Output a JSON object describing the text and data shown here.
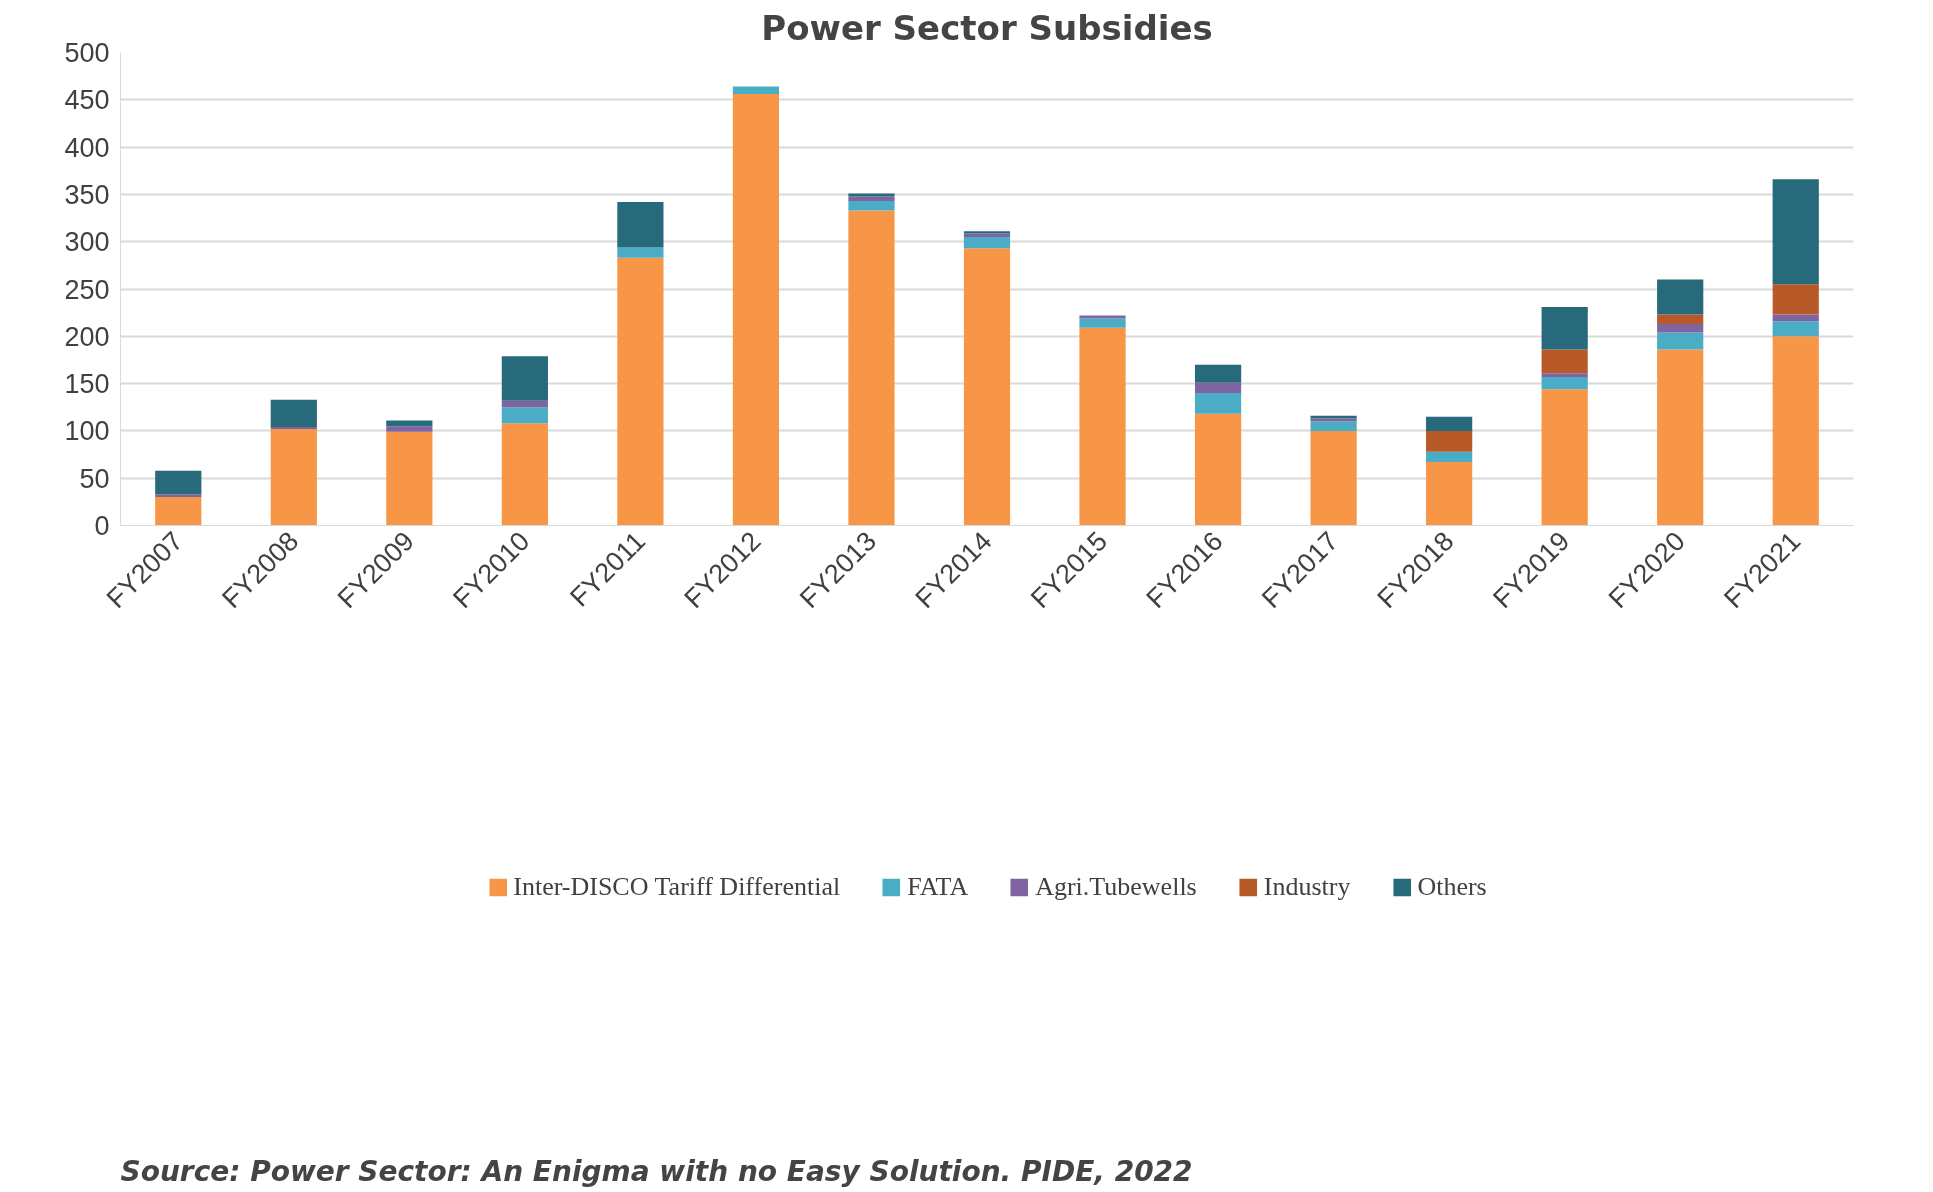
{
  "chart_data": {
    "type": "bar",
    "title": "Power Sector Subsidies",
    "stacked": true,
    "categories": [
      "FY2007",
      "FY2008",
      "FY2009",
      "FY2010",
      "FY2011",
      "FY2012",
      "FY2013",
      "FY2014",
      "FY2015",
      "FY2016",
      "FY2017",
      "FY2018",
      "FY2019",
      "FY2020",
      "FY2021"
    ],
    "series": [
      {
        "name": "Inter-DISCO Tariff Differential",
        "color": "#f79646",
        "values": [
          30,
          102,
          99,
          108,
          283,
          456,
          333,
          293,
          209,
          118,
          100,
          67,
          144,
          186,
          200
        ]
      },
      {
        "name": "FATA",
        "color": "#4bacc6",
        "values": [
          0,
          0,
          0,
          17,
          11,
          8,
          10,
          12,
          10,
          22,
          10,
          11,
          13,
          18,
          16
        ]
      },
      {
        "name": "Agri.Tubewells",
        "color": "#8064a2",
        "values": [
          3,
          2,
          6,
          7,
          0,
          0,
          5,
          4,
          3,
          11,
          3,
          0,
          4,
          9,
          7
        ]
      },
      {
        "name": "Industry",
        "color": "#b85a27",
        "values": [
          0,
          0,
          0,
          0,
          0,
          0,
          0,
          0,
          0,
          0,
          0,
          22,
          25,
          10,
          32
        ]
      },
      {
        "name": "Others",
        "color": "#276a7c",
        "values": [
          25,
          29,
          6,
          47,
          48,
          0,
          3,
          2,
          0,
          19,
          3,
          15,
          45,
          37,
          111
        ]
      }
    ],
    "ylim": [
      0,
      500
    ],
    "yticks": [
      0,
      50,
      100,
      150,
      200,
      250,
      300,
      350,
      400,
      450,
      500
    ],
    "grid": "y",
    "legend": "bottom",
    "annotations": [
      "Source: Power Sector: An Enigma with no Easy Solution. PIDE, 2022"
    ]
  }
}
